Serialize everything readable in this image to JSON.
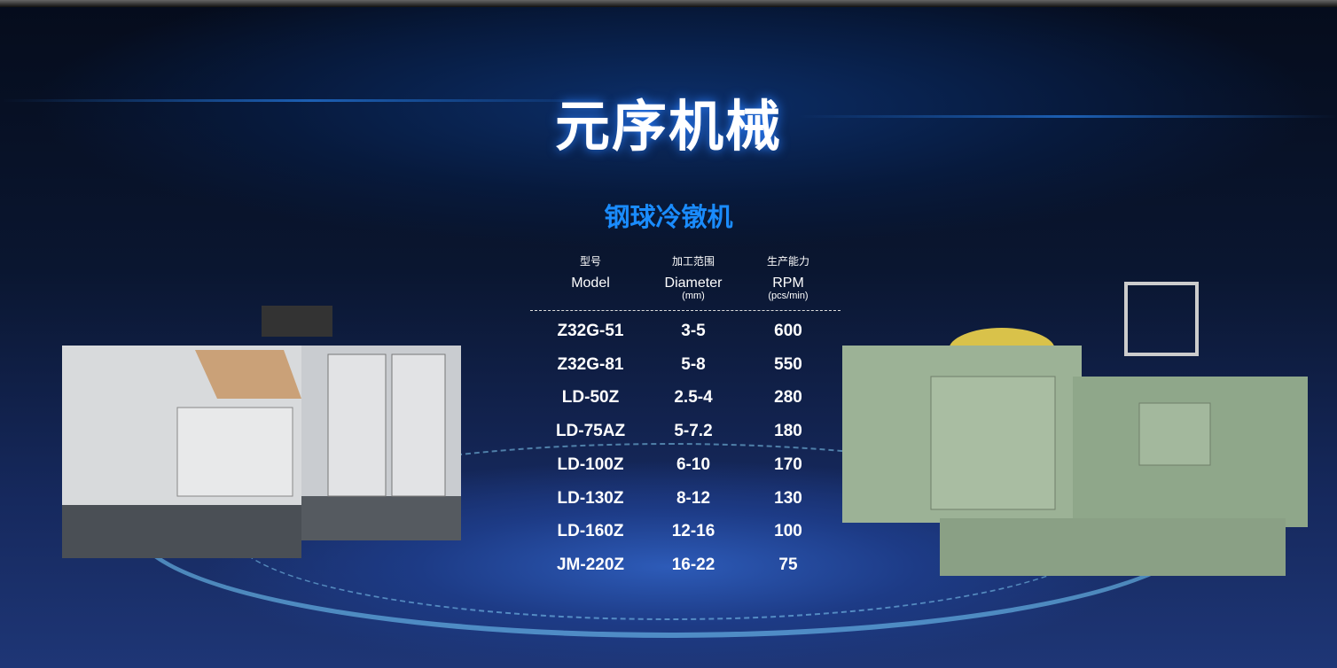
{
  "brand_title": "元序机械",
  "product_title": "钢球冷镦机",
  "table": {
    "headers": [
      {
        "cn": "型号",
        "en": "Model",
        "unit": ""
      },
      {
        "cn": "加工范围",
        "en": "Diameter",
        "unit": "(mm)"
      },
      {
        "cn": "生产能力",
        "en": "RPM",
        "unit": "(pcs/min)"
      }
    ],
    "rows": [
      {
        "model": "Z32G-51",
        "diameter": "3-5",
        "rpm": "600"
      },
      {
        "model": "Z32G-81",
        "diameter": "5-8",
        "rpm": "550"
      },
      {
        "model": "LD-50Z",
        "diameter": "2.5-4",
        "rpm": "280"
      },
      {
        "model": "LD-75AZ",
        "diameter": "5-7.2",
        "rpm": "180"
      },
      {
        "model": "LD-100Z",
        "diameter": "6-10",
        "rpm": "170"
      },
      {
        "model": "LD-130Z",
        "diameter": "8-12",
        "rpm": "130"
      },
      {
        "model": "LD-160Z",
        "diameter": "12-16",
        "rpm": "100"
      },
      {
        "model": "JM-220Z",
        "diameter": "16-22",
        "rpm": "75"
      }
    ]
  },
  "colors": {
    "accent": "#1a8cff",
    "background": "#0a1630"
  }
}
